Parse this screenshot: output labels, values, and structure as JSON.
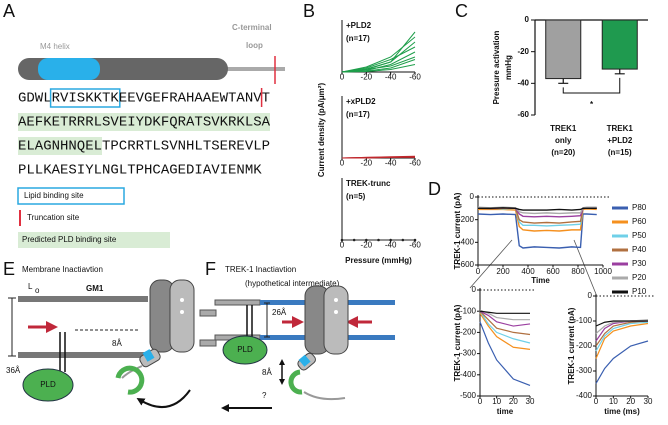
{
  "panel_labels": [
    "A",
    "B",
    "C",
    "D",
    "E",
    "F"
  ],
  "panel_a": {
    "helix_label": "M4 helix",
    "loop_label": [
      "C-terminal",
      "loop"
    ],
    "sequence": [
      [
        "GDWL",
        "RVISKKTK",
        "EEVGEFRAHAAEWTANV",
        "T"
      ],
      [
        "AEFKETRRRLSVEIYDKFQRATSVKRKLSA"
      ],
      [
        "ELAGNHNQEL",
        "TPCRRTLSVNHLTSEREVLP"
      ],
      [
        "PLLKAESIYLNGLTPHCAGEDIAVIENMK"
      ]
    ],
    "legend": [
      "Lipid binding site",
      "Truncation site",
      "Predicted PLD binding site"
    ]
  },
  "panel_e": {
    "title": "Membrane Inactiavtion",
    "lipid_order": [
      "L",
      "o"
    ],
    "lipid": "GM1",
    "gap": "8Å",
    "thickness": "36Å",
    "enzyme": "PLD"
  },
  "panel_f": {
    "title": "TREK-1 Inactiavtion",
    "subtitle": "(hypothetical intermediate)",
    "thickness": "26Å",
    "gap": "8Å",
    "enzyme": "PLD",
    "question": "?"
  },
  "chart_data": [
    {
      "type": "line",
      "title": [
        "+PLD2",
        "(n=17)"
      ],
      "x": [
        0,
        -20,
        -40,
        -60
      ],
      "xlim": [
        0,
        -60
      ],
      "xticks": [
        0,
        -20,
        -40,
        -60
      ],
      "ylim": [
        0,
        10
      ],
      "series": [
        {
          "color": "#1e9e4a",
          "values": [
            0,
            0.5,
            2,
            6
          ]
        },
        {
          "color": "#1e9e4a",
          "values": [
            0,
            1,
            3,
            7
          ]
        },
        {
          "color": "#1e9e4a",
          "values": [
            0,
            0.3,
            1.5,
            4
          ]
        },
        {
          "color": "#1e9e4a",
          "values": [
            0,
            0.8,
            2.5,
            5
          ]
        },
        {
          "color": "#1e9e4a",
          "values": [
            0,
            0.2,
            0.8,
            2.5
          ]
        },
        {
          "color": "#1e9e4a",
          "values": [
            0,
            0.5,
            1.2,
            3
          ]
        },
        {
          "color": "#1e9e4a",
          "values": [
            0,
            0.1,
            0.5,
            1.5
          ]
        },
        {
          "color": "#1e9e4a",
          "values": [
            0,
            0.6,
            2,
            8
          ]
        }
      ]
    },
    {
      "type": "line",
      "title": [
        "+xPLD2",
        "(n=17)"
      ],
      "ylabel": "Current density (pA/μm²)",
      "x": [
        0,
        -20,
        -40,
        -60
      ],
      "xlim": [
        0,
        -60
      ],
      "xticks": [
        0,
        -20,
        -40,
        -60
      ],
      "ylim": [
        0,
        10
      ],
      "series": [
        {
          "color": "#c0282d",
          "values": [
            0,
            0.1,
            0.2,
            0.3
          ]
        },
        {
          "color": "#c0282d",
          "values": [
            0,
            0.05,
            0.1,
            0.2
          ]
        },
        {
          "color": "#c0282d",
          "values": [
            0,
            0,
            0.1,
            0.15
          ]
        },
        {
          "color": "#c0282d",
          "values": [
            0,
            0.1,
            0.15,
            0.1
          ]
        }
      ]
    },
    {
      "type": "line",
      "title": [
        "TREK-trunc",
        "(n=5)"
      ],
      "xlabel": "Pressure (mmHg)",
      "x": [
        0,
        -10,
        -20,
        -30,
        -40,
        -50,
        -60
      ],
      "xlim": [
        0,
        -60
      ],
      "xticks": [
        0,
        -20,
        -40,
        -60
      ],
      "ylim": [
        0,
        10
      ],
      "series": [
        {
          "color": "#222222",
          "values": [
            0,
            0,
            0,
            0,
            0,
            0,
            0
          ]
        }
      ]
    },
    {
      "type": "bar",
      "ylabel": [
        "Pressure activation",
        "mmHg"
      ],
      "categories": [
        [
          "TREK1",
          "only",
          "(n=20)"
        ],
        [
          "TREK1",
          "+PLD2",
          "(n=15)"
        ]
      ],
      "values": [
        -37,
        -31
      ],
      "errors": [
        3,
        3
      ],
      "colors": [
        "#a0a0a0",
        "#1f9a4f"
      ],
      "ylim": [
        -60,
        0
      ],
      "yticks": [
        0,
        -20,
        -40,
        -60
      ],
      "annotation": "*"
    },
    {
      "type": "line",
      "xlabel": "Time",
      "ylabel": "TREK-1 current (pA)",
      "x": [
        0,
        100,
        200,
        300,
        330,
        360,
        450,
        550,
        650,
        750,
        820,
        840,
        870,
        950
      ],
      "xlim": [
        0,
        1000
      ],
      "xticks": [
        0,
        200,
        400,
        600,
        800,
        1000
      ],
      "ylim": [
        -600,
        0
      ],
      "yticks": [
        0,
        -200,
        -400,
        -600
      ],
      "series": [
        {
          "name": "P80",
          "color": "#3a5fb0",
          "values": [
            -150,
            -155,
            -150,
            -155,
            -430,
            -450,
            -440,
            -445,
            -450,
            -440,
            -445,
            -150,
            -150,
            -155
          ]
        },
        {
          "name": "P60",
          "color": "#f5901e",
          "values": [
            -110,
            -110,
            -110,
            -115,
            -260,
            -290,
            -300,
            -295,
            -300,
            -290,
            -290,
            -110,
            -105,
            -110
          ]
        },
        {
          "name": "P50",
          "color": "#6fd0e8",
          "values": [
            -100,
            -100,
            -105,
            -100,
            -220,
            -250,
            -250,
            -255,
            -250,
            -245,
            -240,
            -100,
            -100,
            -100
          ]
        },
        {
          "name": "P40",
          "color": "#b07040",
          "values": [
            -100,
            -105,
            -100,
            -100,
            -200,
            -220,
            -230,
            -225,
            -230,
            -220,
            -215,
            -100,
            -100,
            -100
          ]
        },
        {
          "name": "P30",
          "color": "#9b3fa0",
          "values": [
            -95,
            -100,
            -95,
            -100,
            -150,
            -170,
            -175,
            -170,
            -175,
            -170,
            -165,
            -100,
            -95,
            -95
          ]
        },
        {
          "name": "P20",
          "color": "#aaaaaa",
          "values": [
            -90,
            -95,
            -90,
            -95,
            -130,
            -140,
            -145,
            -140,
            -145,
            -140,
            -140,
            -95,
            -90,
            -90
          ]
        },
        {
          "name": "P10",
          "color": "#111111",
          "values": [
            -100,
            -100,
            -95,
            -100,
            -110,
            -115,
            -115,
            -115,
            -110,
            -115,
            -110,
            -100,
            -100,
            -100
          ]
        }
      ]
    },
    {
      "type": "line",
      "xlabel": "time",
      "ylabel": "TREK-1 current (pA)",
      "x": [
        0,
        5,
        10,
        20,
        30
      ],
      "xlim": [
        0,
        30
      ],
      "xticks": [
        0,
        10,
        20,
        30
      ],
      "ylim": [
        -500,
        0
      ],
      "yticks": [
        0,
        -100,
        -200,
        -300,
        -400,
        -500
      ],
      "series": [
        {
          "color": "#3a5fb0",
          "values": [
            -150,
            -250,
            -330,
            -420,
            -450
          ]
        },
        {
          "color": "#f5901e",
          "values": [
            -110,
            -170,
            -220,
            -270,
            -280
          ]
        },
        {
          "color": "#6fd0e8",
          "values": [
            -100,
            -160,
            -200,
            -230,
            -250
          ]
        },
        {
          "color": "#b07040",
          "values": [
            -100,
            -140,
            -180,
            -200,
            -210
          ]
        },
        {
          "color": "#9b3fa0",
          "values": [
            -100,
            -120,
            -150,
            -170,
            -160
          ]
        },
        {
          "color": "#aaaaaa",
          "values": [
            -95,
            -110,
            -130,
            -140,
            -140
          ]
        },
        {
          "color": "#111111",
          "values": [
            -100,
            -105,
            -110,
            -110,
            -110
          ]
        }
      ]
    },
    {
      "type": "line",
      "xlabel": "time (ms)",
      "ylabel": "TREK-1 current (pA)",
      "x": [
        0,
        5,
        10,
        20,
        30
      ],
      "xlim": [
        0,
        30
      ],
      "xticks": [
        0,
        10,
        20,
        30
      ],
      "ylim": [
        -400,
        0
      ],
      "yticks": [
        0,
        -100,
        -200,
        -300,
        -400
      ],
      "series": [
        {
          "color": "#3a5fb0",
          "values": [
            -350,
            -290,
            -250,
            -200,
            -180
          ]
        },
        {
          "color": "#f5901e",
          "values": [
            -250,
            -170,
            -140,
            -120,
            -110
          ]
        },
        {
          "color": "#6fd0e8",
          "values": [
            -220,
            -160,
            -130,
            -110,
            -105
          ]
        },
        {
          "color": "#b07040",
          "values": [
            -200,
            -150,
            -120,
            -105,
            -100
          ]
        },
        {
          "color": "#9b3fa0",
          "values": [
            -180,
            -130,
            -110,
            -100,
            -100
          ]
        },
        {
          "color": "#aaaaaa",
          "values": [
            -150,
            -120,
            -105,
            -100,
            -95
          ]
        },
        {
          "color": "#111111",
          "values": [
            -120,
            -105,
            -100,
            -100,
            -100
          ]
        }
      ]
    }
  ]
}
